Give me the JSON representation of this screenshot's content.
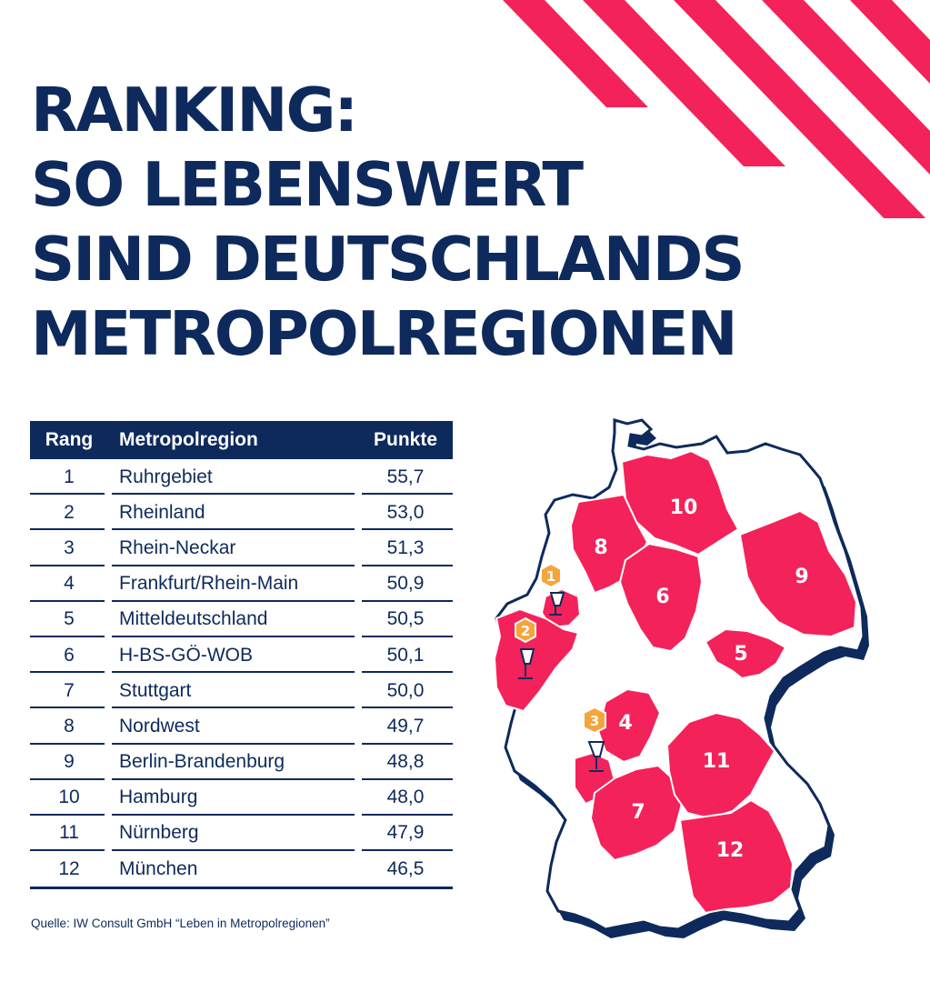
{
  "title_lines": [
    "RANKING:",
    "SO LEBENSWERT",
    "SIND DEUTSCHLANDS",
    "METROPOLREGIONEN"
  ],
  "table": {
    "headers": {
      "rank": "Rang",
      "region": "Metropolregion",
      "points": "Punkte"
    },
    "rows": [
      {
        "rank": "1",
        "region": "Ruhrgebiet",
        "points": "55,7"
      },
      {
        "rank": "2",
        "region": "Rheinland",
        "points": "53,0"
      },
      {
        "rank": "3",
        "region": "Rhein-Neckar",
        "points": "51,3"
      },
      {
        "rank": "4",
        "region": "Frankfurt/Rhein-Main",
        "points": "50,9"
      },
      {
        "rank": "5",
        "region": "Mitteldeutschland",
        "points": "50,5"
      },
      {
        "rank": "6",
        "region": "H-BS-GÖ-WOB",
        "points": "50,1"
      },
      {
        "rank": "7",
        "region": "Stuttgart",
        "points": "50,0"
      },
      {
        "rank": "8",
        "region": "Nordwest",
        "points": "49,7"
      },
      {
        "rank": "9",
        "region": "Berlin-Brandenburg",
        "points": "48,8"
      },
      {
        "rank": "10",
        "region": "Hamburg",
        "points": "48,0"
      },
      {
        "rank": "11",
        "region": "Nürnberg",
        "points": "47,9"
      },
      {
        "rank": "12",
        "region": "München",
        "points": "46,5"
      }
    ]
  },
  "source": "Quelle: IW Consult GmbH “Leben in Metropolregionen”",
  "map": {
    "region_labels": [
      "10",
      "8",
      "6",
      "9",
      "5",
      "4",
      "11",
      "7",
      "12"
    ],
    "medal_labels": [
      "1",
      "2",
      "3"
    ]
  },
  "colors": {
    "navy": "#0e2a5c",
    "accent": "#f4225a",
    "medal": "#f5a53a",
    "map_shadow": "#0e2a5c"
  }
}
